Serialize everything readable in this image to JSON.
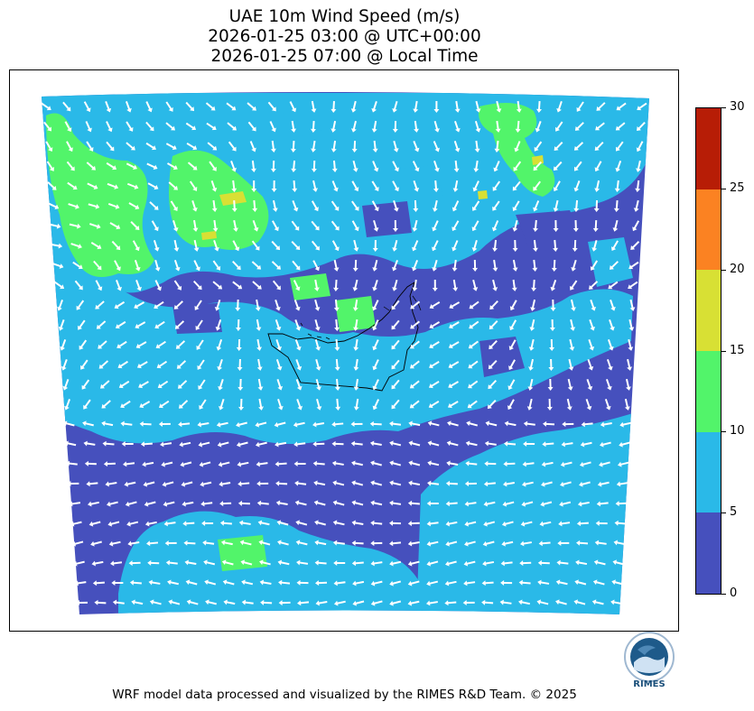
{
  "title": {
    "line1": "UAE 10m Wind Speed (m/s)",
    "line2": "2026-01-25 03:00 @ UTC+00:00",
    "line3": "2026-01-25 07:00 @ Local Time"
  },
  "colorbar": {
    "ticks": [
      "0",
      "5",
      "10",
      "15",
      "20",
      "25",
      "30"
    ],
    "bands": [
      {
        "from": 0,
        "to": 5,
        "color": "#4650bd"
      },
      {
        "from": 5,
        "to": 10,
        "color": "#2ab9e8"
      },
      {
        "from": 10,
        "to": 15,
        "color": "#52f46a"
      },
      {
        "from": 15,
        "to": 20,
        "color": "#d8e034"
      },
      {
        "from": 20,
        "to": 25,
        "color": "#fb8222"
      },
      {
        "from": 25,
        "to": 30,
        "color": "#b71d06"
      }
    ]
  },
  "logo": {
    "text": "RIMES"
  },
  "footer": "WRF model data processed and visualized by the RIMES R&D Team. © 2025"
}
